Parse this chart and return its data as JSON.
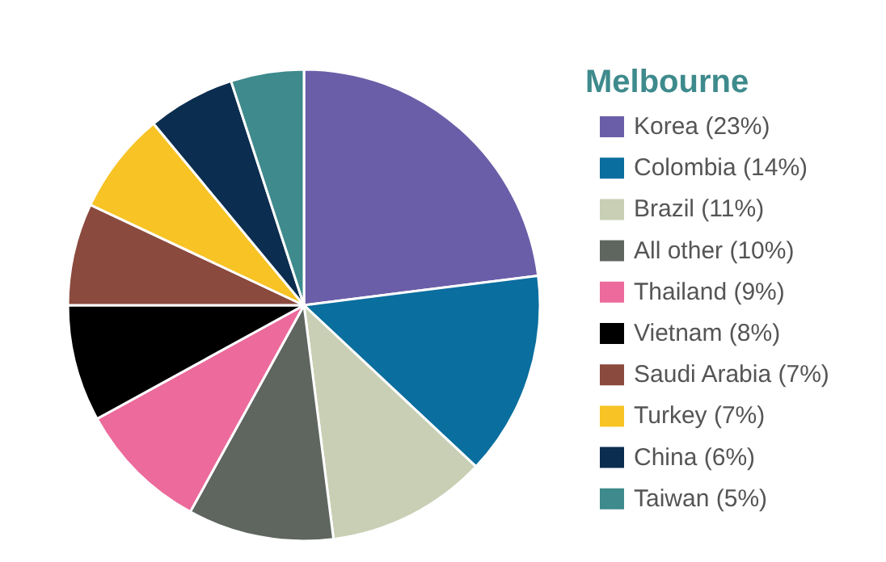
{
  "chart_data": {
    "type": "pie",
    "legend_title": "Melbourne",
    "legend": "right",
    "categories": [
      "Korea (23%)",
      "Colombia (14%)",
      "Brazil (11%)",
      "All other (10%)",
      "Thailand (9%)",
      "Vietnam (8%)",
      "Saudi Arabia (7%)",
      "Turkey (7%)",
      "China (6%)",
      "Taiwan (5%)"
    ],
    "values": [
      23,
      14,
      11,
      10,
      9,
      8,
      7,
      7,
      6,
      5
    ],
    "colors": [
      "#6b5ea8",
      "#0a6e9e",
      "#c8cfb4",
      "#5f6660",
      "#ec6a9c",
      "#000000",
      "#8b4a3e",
      "#f7c325",
      "#0b2d4f",
      "#3e8a8c"
    ]
  }
}
